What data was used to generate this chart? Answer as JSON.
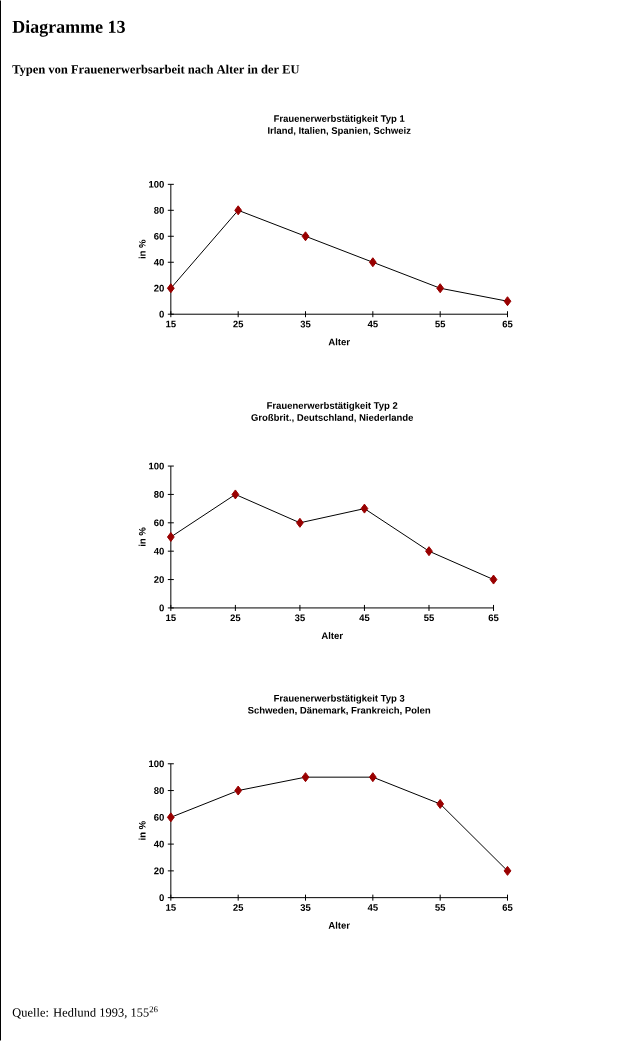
{
  "chart_data": [
    {
      "type": "line",
      "title": "Frauenerwerbstätigkeit Typ 1",
      "subtitle": "Irland, Italien, Spanien, Schweiz",
      "xlabel": "Alter",
      "ylabel": "in %",
      "annotations": [
        "Diagramme 13",
        "Typen von Frauenerwerbsarbeit nach Alter in der EU"
      ],
      "x": [
        15,
        25,
        35,
        45,
        55,
        65
      ],
      "series": [
        {
          "color": "#990000",
          "values": [
            20,
            80,
            60,
            40,
            20,
            10
          ]
        }
      ],
      "xlim": [
        15,
        65
      ],
      "ylim": [
        0,
        100
      ],
      "xticks": [
        15,
        25,
        35,
        45,
        55,
        65
      ],
      "yticks": [
        0,
        20,
        40,
        60,
        80,
        100
      ],
      "marker": "diamond",
      "line_style": "solid"
    },
    {
      "type": "line",
      "title": "Frauenerwerbstätigkeit Typ 2",
      "subtitle": "Großbrit., Deutschland, Niederlande",
      "xlabel": "Alter",
      "ylabel": "in %",
      "x": [
        15,
        25,
        35,
        45,
        55,
        65
      ],
      "series": [
        {
          "color": "#990000",
          "values": [
            50,
            80,
            60,
            70,
            40,
            20
          ]
        }
      ],
      "xlim": [
        15,
        65
      ],
      "ylim": [
        0,
        100
      ],
      "xticks": [
        15,
        25,
        35,
        45,
        55,
        65
      ],
      "yticks": [
        0,
        20,
        40,
        60,
        80,
        100
      ],
      "marker": "diamond",
      "line_style": "solid"
    },
    {
      "type": "line",
      "title": "Frauenerwerbstätigkeit Typ 3",
      "subtitle": "Schweden, Dänemark, Frankreich, Polen",
      "xlabel": "Alter",
      "ylabel": "in %",
      "annotations": [
        "Quelle: Hedlund 1993, 155$^{26}$"
      ],
      "x": [
        15,
        25,
        35,
        45,
        55,
        65
      ],
      "series": [
        {
          "color": "#990000",
          "values": [
            60,
            80,
            90,
            90,
            70,
            20
          ]
        }
      ],
      "xlim": [
        15,
        65
      ],
      "ylim": [
        0,
        100
      ],
      "xticks": [
        15,
        25,
        35,
        45,
        55,
        65
      ],
      "yticks": [
        0,
        20,
        40,
        60,
        80,
        100
      ],
      "marker": "diamond",
      "line_style": "solid"
    }
  ]
}
